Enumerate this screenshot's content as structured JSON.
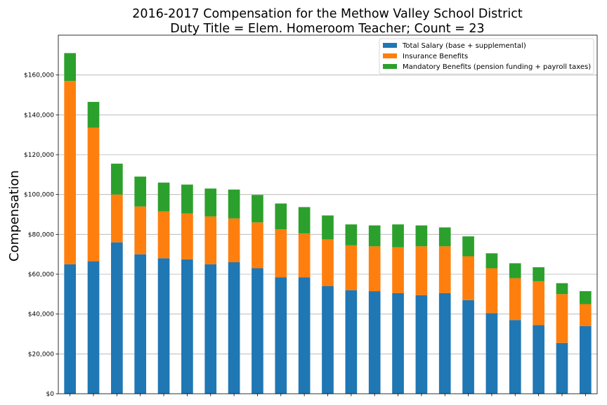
{
  "chart_data": {
    "type": "bar",
    "stacked": true,
    "title": "2016-2017 Compensation for the Methow Valley School District",
    "subtitle": "Duty Title = Elem. Homeroom Teacher; Count = 23",
    "xlabel": "",
    "ylabel": "Compensation",
    "ylim": [
      0,
      180000
    ],
    "yticks": [
      0,
      20000,
      40000,
      60000,
      80000,
      100000,
      120000,
      140000,
      160000
    ],
    "ytick_labels": [
      "$0",
      "$20,000",
      "$40,000",
      "$60,000",
      "$80,000",
      "$100,000",
      "$120,000",
      "$140,000",
      "$160,000"
    ],
    "grid": "horizontal",
    "legend_position": "top-right",
    "bar_count": 23,
    "series": [
      {
        "name": "Total Salary (base + supplemental)",
        "color": "#1f77b4",
        "values": [
          65000,
          66500,
          76000,
          70000,
          68000,
          67500,
          65000,
          66000,
          63000,
          58500,
          58500,
          54000,
          52000,
          51500,
          50500,
          49500,
          50500,
          47000,
          40500,
          37000,
          34500,
          25500,
          34000
        ]
      },
      {
        "name": "Insurance Benefits",
        "color": "#ff7f0e",
        "values": [
          92000,
          67000,
          24000,
          24000,
          23500,
          23000,
          24000,
          22000,
          23000,
          24000,
          22000,
          23500,
          22500,
          22500,
          23000,
          24500,
          23500,
          22000,
          22500,
          21000,
          22000,
          24500,
          11000
        ]
      },
      {
        "name": "Mandatory Benefits (pension funding + payroll taxes)",
        "color": "#2ca02c",
        "values": [
          14000,
          13000,
          15500,
          15000,
          14500,
          14500,
          14000,
          14500,
          13800,
          13000,
          13200,
          12000,
          10500,
          10500,
          11500,
          10500,
          9500,
          10000,
          7500,
          7500,
          7000,
          5500,
          6500
        ]
      }
    ]
  }
}
